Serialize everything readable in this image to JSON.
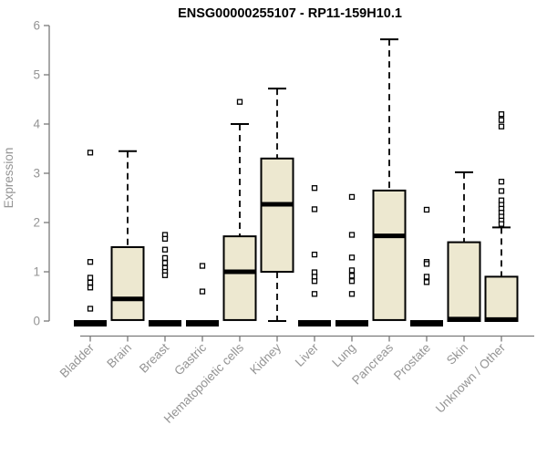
{
  "title": "ENSG00000255107 - RP11-159H10.1",
  "colors": {
    "background": "#ffffff",
    "box_fill": "#EDE8D0",
    "box_border": "#000000",
    "median": "#000000",
    "whisker": "#000000",
    "outlier_stroke": "#000000",
    "axis_line": "#7a7a7a",
    "tick_label": "#949494",
    "title_color": "#000000"
  },
  "chart_data": {
    "type": "boxplot",
    "title": "ENSG00000255107 - RP11-159H10.1",
    "xlabel": "",
    "ylabel": "Expression",
    "ylim": [
      0,
      6
    ],
    "yticks": [
      0,
      1,
      2,
      3,
      4,
      5,
      6
    ],
    "grid": false,
    "legend": "none",
    "categories": [
      "Bladder",
      "Brain",
      "Breast",
      "Gastric",
      "Hematopoietic cells",
      "Kidney",
      "Liver",
      "Lung",
      "Pancreas",
      "Prostate",
      "Skin",
      "Unknown / Other"
    ],
    "boxes": [
      {
        "category": "Bladder",
        "min": 0,
        "q1": 0,
        "median": 0,
        "q3": 0,
        "max": 0,
        "outliers": [
          3.42,
          1.2,
          0.88,
          0.78,
          0.68,
          0.25
        ]
      },
      {
        "category": "Brain",
        "min": 0,
        "q1": 0.02,
        "median": 0.45,
        "q3": 1.5,
        "max": 3.45,
        "outliers": []
      },
      {
        "category": "Breast",
        "min": 0,
        "q1": 0,
        "median": 0,
        "q3": 0,
        "max": 0,
        "outliers": [
          1.75,
          1.67,
          1.45,
          1.28,
          1.18,
          1.08,
          1.0,
          0.93
        ]
      },
      {
        "category": "Gastric",
        "min": 0,
        "q1": 0,
        "median": 0,
        "q3": 0,
        "max": 0,
        "outliers": [
          1.12,
          0.6
        ]
      },
      {
        "category": "Hematopoietic cells",
        "min": 0,
        "q1": 0.02,
        "median": 1.0,
        "q3": 1.72,
        "max": 4.0,
        "outliers": [
          4.45
        ]
      },
      {
        "category": "Kidney",
        "min": 0,
        "q1": 1.0,
        "median": 2.37,
        "q3": 3.3,
        "max": 4.72,
        "outliers": []
      },
      {
        "category": "Liver",
        "min": 0,
        "q1": 0,
        "median": 0,
        "q3": 0,
        "max": 0,
        "outliers": [
          2.7,
          2.27,
          1.35,
          0.99,
          0.9,
          0.81,
          0.55
        ]
      },
      {
        "category": "Lung",
        "min": 0,
        "q1": 0,
        "median": 0,
        "q3": 0,
        "max": 0,
        "outliers": [
          2.52,
          1.75,
          1.29,
          1.03,
          0.92,
          0.81,
          0.55
        ]
      },
      {
        "category": "Pancreas",
        "min": 0,
        "q1": 0.02,
        "median": 1.73,
        "q3": 2.65,
        "max": 5.72,
        "outliers": []
      },
      {
        "category": "Prostate",
        "min": 0,
        "q1": 0,
        "median": 0,
        "q3": 0,
        "max": 0,
        "outliers": [
          2.26,
          1.2,
          1.16,
          0.9,
          0.79
        ]
      },
      {
        "category": "Skin",
        "min": 0,
        "q1": 0,
        "median": 0.04,
        "q3": 1.6,
        "max": 3.02,
        "outliers": []
      },
      {
        "category": "Unknown / Other",
        "min": 0,
        "q1": 0,
        "median": 0.03,
        "q3": 0.9,
        "max": 1.9,
        "outliers": [
          4.2,
          4.08,
          3.95,
          2.83,
          2.64,
          2.45,
          2.36,
          2.28,
          2.2,
          2.12,
          2.04,
          1.97
        ]
      }
    ]
  }
}
